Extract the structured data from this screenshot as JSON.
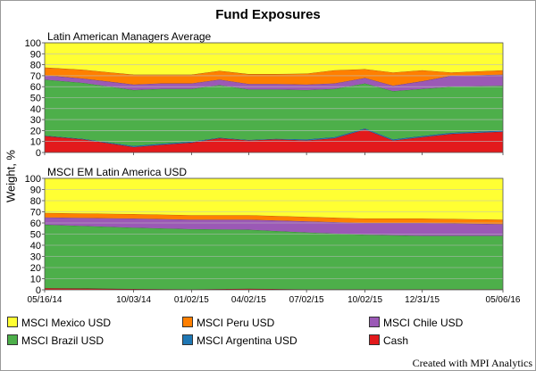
{
  "title": "Fund Exposures",
  "ylabel": "Weight, %",
  "credit": "Created with MPI Analytics",
  "x_tick_labels": [
    "05/16/14",
    "10/03/14",
    "01/02/15",
    "04/02/15",
    "07/02/15",
    "10/02/15",
    "12/31/15",
    "05/06/16"
  ],
  "chart_data": [
    {
      "type": "area",
      "stacked": true,
      "title": "Latin American Managers Average",
      "ylabel": "Weight, %",
      "ylim": [
        0,
        100
      ],
      "yticks": [
        0,
        10,
        20,
        30,
        40,
        50,
        60,
        70,
        80,
        90,
        100
      ],
      "grid": true,
      "x": [
        "05/16/14",
        "07/15/14",
        "10/03/14",
        "11/15/14",
        "01/02/15",
        "02/15/15",
        "04/02/15",
        "05/15/15",
        "07/02/15",
        "08/15/15",
        "10/02/15",
        "11/15/15",
        "12/31/15",
        "02/15/16",
        "05/06/16"
      ],
      "series": [
        {
          "name": "Cash",
          "color": "#e31a1c",
          "values": [
            15,
            12,
            5,
            7,
            9,
            13,
            11,
            12,
            11,
            13,
            21,
            11,
            14,
            17,
            19
          ]
        },
        {
          "name": "MSCI Argentina USD",
          "color": "#1f77b4",
          "values": [
            0.5,
            0.5,
            1,
            1,
            1,
            0.5,
            0.5,
            0.5,
            1,
            1,
            1,
            1,
            1,
            1,
            1
          ]
        },
        {
          "name": "MSCI Brazil USD",
          "color": "#4daf4a",
          "values": [
            51,
            51,
            51,
            50,
            48,
            48,
            46,
            45,
            45,
            44,
            41,
            44,
            43,
            42,
            41
          ]
        },
        {
          "name": "MSCI Chile USD",
          "color": "#9b59b6",
          "values": [
            4,
            4,
            5,
            5,
            5,
            5,
            5,
            5,
            5,
            5,
            5,
            5,
            7,
            10,
            10
          ]
        },
        {
          "name": "MSCI Peru USD",
          "color": "#ff7f00",
          "values": [
            7,
            8,
            9,
            8,
            8,
            8,
            9,
            9,
            10,
            12,
            8,
            12,
            10,
            3,
            4
          ]
        },
        {
          "name": "MSCI Mexico USD",
          "color": "#ffff33",
          "values": [
            22.5,
            24.5,
            29,
            29,
            29,
            25.5,
            28.5,
            28.5,
            28,
            25,
            24,
            27,
            25,
            27,
            25
          ]
        }
      ]
    },
    {
      "type": "area",
      "stacked": true,
      "title": "MSCI EM Latin America USD",
      "ylabel": "Weight, %",
      "ylim": [
        0,
        100
      ],
      "yticks": [
        0,
        10,
        20,
        30,
        40,
        50,
        60,
        70,
        80,
        90,
        100
      ],
      "grid": true,
      "x": [
        "05/16/14",
        "10/03/14",
        "01/02/15",
        "04/02/15",
        "07/02/15",
        "10/02/15",
        "12/31/15",
        "05/06/16"
      ],
      "series": [
        {
          "name": "Cash",
          "color": "#e31a1c",
          "values": [
            1.5,
            0.8,
            0.5,
            1,
            0.5,
            0.5,
            0.5,
            0.5
          ]
        },
        {
          "name": "MSCI Argentina USD",
          "color": "#1f77b4",
          "values": [
            0,
            0,
            0,
            0,
            0,
            0,
            0,
            0
          ]
        },
        {
          "name": "MSCI Brazil USD",
          "color": "#4daf4a",
          "values": [
            57,
            55,
            54,
            53,
            51,
            49,
            48,
            48
          ]
        },
        {
          "name": "MSCI Chile USD",
          "color": "#9b59b6",
          "values": [
            6.5,
            8.2,
            8.5,
            9,
            10,
            10.5,
            11.5,
            10.5
          ]
        },
        {
          "name": "MSCI Peru USD",
          "color": "#ff7f00",
          "values": [
            4,
            4,
            4,
            4,
            4,
            4,
            4,
            4
          ]
        },
        {
          "name": "MSCI Mexico USD",
          "color": "#ffff33",
          "values": [
            31,
            32,
            33,
            33,
            34.5,
            36,
            36,
            37
          ]
        }
      ]
    }
  ],
  "legend": [
    {
      "name": "MSCI Mexico USD",
      "color": "#ffff33"
    },
    {
      "name": "MSCI Peru USD",
      "color": "#ff7f00"
    },
    {
      "name": "MSCI Chile USD",
      "color": "#9b59b6"
    },
    {
      "name": "MSCI Brazil USD",
      "color": "#4daf4a"
    },
    {
      "name": "MSCI Argentina USD",
      "color": "#1f77b4"
    },
    {
      "name": "Cash",
      "color": "#e31a1c"
    }
  ]
}
